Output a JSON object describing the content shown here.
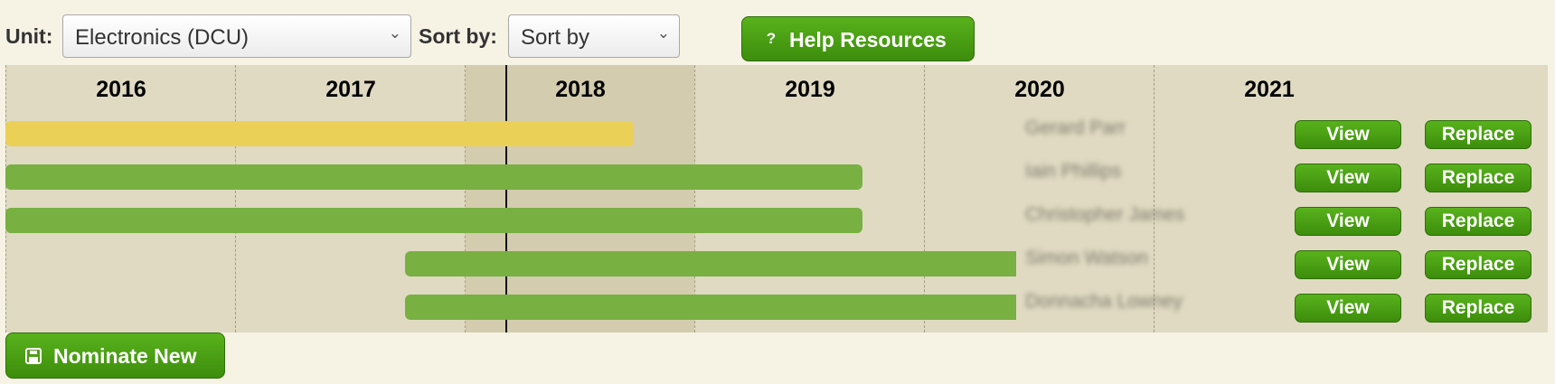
{
  "toolbar": {
    "unit_label": "Unit:",
    "unit_value": "Electronics (DCU)",
    "sort_label": "Sort by:",
    "sort_value": "Sort by",
    "help_label": "Help Resources",
    "help_icon": "question-icon",
    "chevron_icon": "chevron-down-icon"
  },
  "timeline": {
    "years": [
      "2016",
      "2017",
      "2018",
      "2019",
      "2020",
      "2021"
    ],
    "current_date_marker": "2017-09",
    "rows": [
      {
        "name": "Gerard Parr",
        "status": "warning",
        "color": "#ebd058",
        "start": "2016-01",
        "end": "2018-09",
        "view_label": "View",
        "replace_label": "Replace"
      },
      {
        "name": "Iain Phillips",
        "status": "ok",
        "color": "#78b042",
        "start": "2016-01",
        "end": "2019-09",
        "view_label": "View",
        "replace_label": "Replace"
      },
      {
        "name": "Christopher James",
        "status": "ok",
        "color": "#78b042",
        "start": "2016-01",
        "end": "2019-09",
        "view_label": "View",
        "replace_label": "Replace"
      },
      {
        "name": "Simon Watson",
        "status": "ok",
        "color": "#78b042",
        "start": "2017-09",
        "end": "2020-06",
        "view_label": "View",
        "replace_label": "Replace"
      },
      {
        "name": "Donnacha Lowney",
        "status": "ok",
        "color": "#78b042",
        "start": "2017-09",
        "end": "2020-06",
        "view_label": "View",
        "replace_label": "Replace"
      }
    ]
  },
  "footer": {
    "nominate_label": "Nominate New",
    "nominate_icon": "save-icon"
  },
  "colors": {
    "accent_green": "#4a9e14",
    "bar_green": "#78b042",
    "bar_yellow": "#ebd058",
    "background": "#f6f3e5"
  }
}
